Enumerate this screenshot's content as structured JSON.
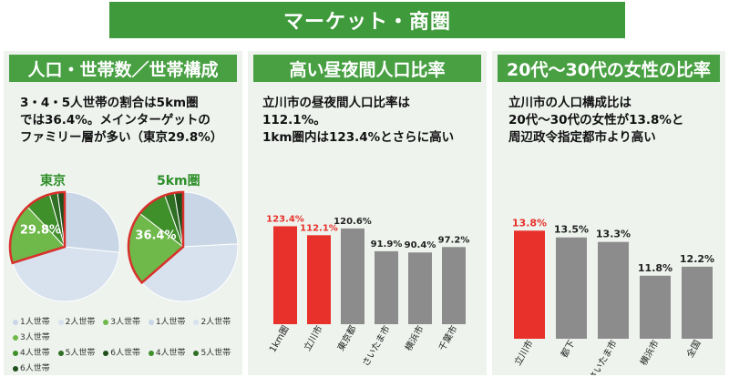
{
  "banner": {
    "title": "マーケット・商圏"
  },
  "panels": [
    {
      "heading": "人口・世帯数／世帯構成",
      "description": [
        "3・4・5人世帯の割合は5km圏",
        "では36.4%。メインターゲットの",
        "ファミリー層が多い（東京29.8%）"
      ],
      "legend_row1": [
        "1人世帯",
        "2人世帯",
        "3人世帯"
      ],
      "legend_row2": [
        "4人世帯",
        "5人世帯",
        "6人世帯"
      ],
      "legend_colors": [
        "#c8d6e6",
        "#d7e2ee",
        "#6fb84a",
        "#3f8f2b",
        "#2f6f24",
        "#1f4f1b"
      ]
    },
    {
      "heading": "高い昼夜間人口比率",
      "description": [
        "立川市の昼夜間人口比率は",
        "112.1%。",
        "1km圏内は123.4%とさらに高い"
      ]
    },
    {
      "heading": "20代～30代の女性の比率",
      "description": [
        "立川市の人口構成比は",
        "20代～30代の女性が13.8%と",
        "周辺政令指定都市より高い"
      ]
    }
  ],
  "chart_data": [
    {
      "type": "pie",
      "title": "東京",
      "highlight_label": "29.8%",
      "highlight_value": 29.8,
      "categories": [
        "1人世帯",
        "2人世帯",
        "3人世帯",
        "4人世帯",
        "5人世帯",
        "6人世帯"
      ]
    },
    {
      "type": "pie",
      "title": "5km圏",
      "highlight_label": "36.4%",
      "highlight_value": 36.4,
      "categories": [
        "1人世帯",
        "2人世帯",
        "3人世帯",
        "4人世帯",
        "5人世帯",
        "6人世帯"
      ]
    },
    {
      "type": "bar",
      "categories": [
        "1km圏",
        "立川市",
        "東京都",
        "さいたま市",
        "横浜市",
        "千葉市"
      ],
      "values": [
        123.4,
        112.1,
        120.6,
        91.9,
        90.4,
        97.2
      ],
      "value_labels": [
        "123.4%",
        "112.1%",
        "120.6%",
        "91.9%",
        "90.4%",
        "97.2%"
      ],
      "highlight": [
        true,
        true,
        false,
        false,
        false,
        false
      ],
      "colors": {
        "highlight": "#e8312b",
        "normal": "#8c8c8c"
      },
      "ylim": [
        0,
        140
      ]
    },
    {
      "type": "bar",
      "categories": [
        "立川市",
        "都下",
        "さいたま市",
        "横浜市",
        "全国"
      ],
      "values": [
        13.8,
        13.5,
        13.3,
        11.8,
        12.2
      ],
      "value_labels": [
        "13.8%",
        "13.5%",
        "13.3%",
        "11.8%",
        "12.2%"
      ],
      "highlight": [
        true,
        false,
        false,
        false,
        false
      ],
      "colors": {
        "highlight": "#e8312b",
        "normal": "#8c8c8c"
      },
      "ylim": [
        9,
        14.5
      ]
    }
  ]
}
